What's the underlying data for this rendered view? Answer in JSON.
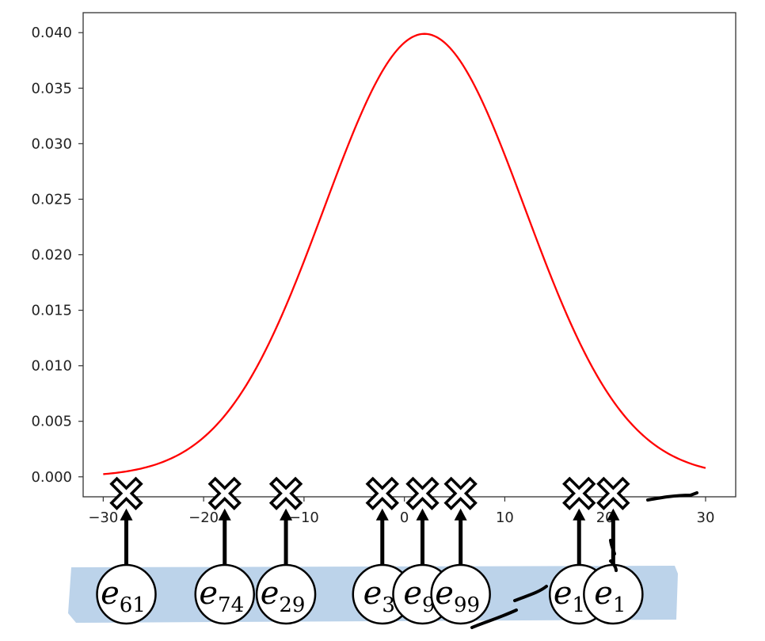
{
  "chart_data": {
    "type": "line",
    "title": "",
    "xlabel": "",
    "ylabel": "",
    "xlim": [
      -32,
      33
    ],
    "ylim": [
      -0.0018,
      0.0418
    ],
    "x_ticks": [
      -30,
      -20,
      -10,
      0,
      10,
      20,
      30
    ],
    "x_tick_labels": [
      "−30",
      "−20",
      "−10",
      "0",
      "10",
      "20",
      "30"
    ],
    "y_ticks": [
      0.0,
      0.005,
      0.01,
      0.015,
      0.02,
      0.025,
      0.03,
      0.035,
      0.04
    ],
    "y_tick_labels": [
      "0.000",
      "0.005",
      "0.010",
      "0.015",
      "0.020",
      "0.025",
      "0.030",
      "0.035",
      "0.040"
    ],
    "grid": false,
    "series": [
      {
        "curve": "normal-density",
        "mean": 2,
        "std": 10,
        "x_range": [
          -30,
          30
        ],
        "color": "#ff0000"
      }
    ],
    "samples": [
      {
        "label": "e",
        "subscript": "61",
        "x": -27.7
      },
      {
        "label": "e",
        "subscript": "74",
        "x": -17.9
      },
      {
        "label": "e",
        "subscript": "29",
        "x": -11.8
      },
      {
        "label": "e",
        "subscript": "3",
        "x": -2.2
      },
      {
        "label": "e",
        "subscript": "9",
        "x": 1.8
      },
      {
        "label": "e",
        "subscript": "99",
        "x": 5.6
      },
      {
        "label": "e",
        "subscript": "10",
        "x": 17.4
      },
      {
        "label": "e",
        "subscript": "1",
        "x": 20.8
      }
    ],
    "colors": {
      "curve": "#ff0000",
      "axes": "#333333",
      "marker_stroke": "#000000",
      "marker_fill": "#ffffff",
      "band": "#bcd3ea",
      "node_fill": "#ffffff",
      "arrow": "#000000"
    }
  }
}
